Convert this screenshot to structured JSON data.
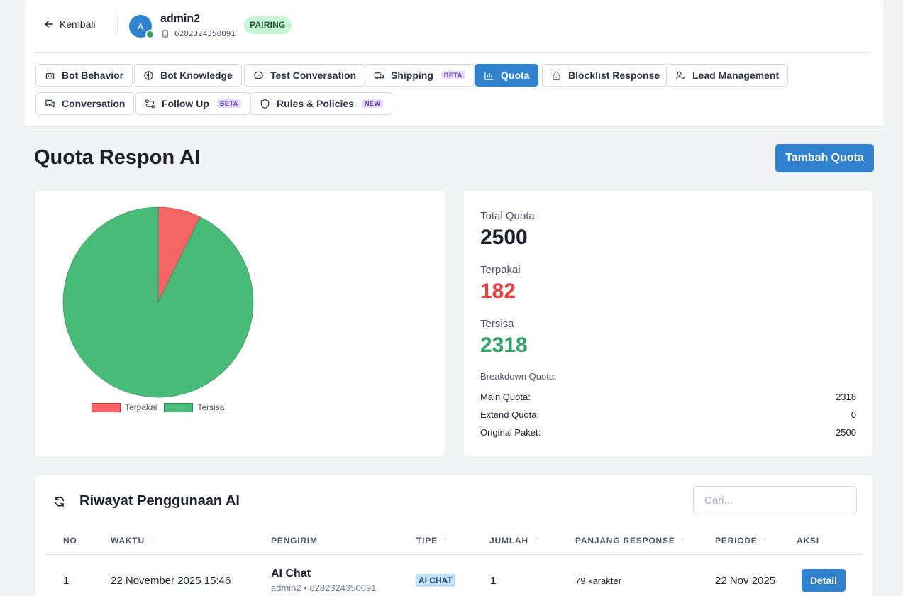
{
  "header": {
    "back_label": "Kembali",
    "avatar_initial": "A",
    "user_name": "admin2",
    "user_phone": "6282324350091",
    "status_badge": "PAIRING"
  },
  "tabs": [
    {
      "label": "Bot Behavior",
      "icon": "bot-icon",
      "tag": ""
    },
    {
      "label": "Bot Knowledge",
      "icon": "brain-icon",
      "tag": ""
    },
    {
      "label": "Test Conversation",
      "icon": "chat-bubble-icon",
      "tag": ""
    },
    {
      "label": "Shipping",
      "icon": "truck-icon",
      "tag": "BETA"
    },
    {
      "label": "Quota",
      "icon": "bar-chart-icon",
      "tag": "",
      "active": true
    },
    {
      "label": "Blocklist Response",
      "icon": "lock-icon",
      "tag": ""
    },
    {
      "label": "Lead Management",
      "icon": "user-check-icon",
      "tag": ""
    },
    {
      "label": "Conversation",
      "icon": "messages-icon",
      "tag": ""
    },
    {
      "label": "Follow Up",
      "icon": "route-icon",
      "tag": "BETA"
    },
    {
      "label": "Rules & Policies",
      "icon": "shield-icon",
      "tag": "NEW"
    }
  ],
  "page": {
    "title": "Quota Respon AI",
    "add_button": "Tambah Quota"
  },
  "chart_data": {
    "type": "pie",
    "categories": [
      "Terpakai",
      "Tersisa"
    ],
    "values": [
      182,
      2318
    ],
    "colors": [
      "#f56565",
      "#48bb78"
    ],
    "legend_position": "bottom"
  },
  "stats": {
    "total_label": "Total Quota",
    "total_value": "2500",
    "used_label": "Terpakai",
    "used_value": "182",
    "remaining_label": "Tersisa",
    "remaining_value": "2318",
    "used_color": "#e53e3e",
    "remaining_color": "#38a169",
    "breakdown_title": "Breakdown Quota:",
    "breakdown": [
      {
        "label": "Main Quota:",
        "value": "2318"
      },
      {
        "label": "Extend Quota:",
        "value": "0"
      },
      {
        "label": "Original Paket:",
        "value": "2500"
      }
    ]
  },
  "history": {
    "title": "Riwayat Penggunaan AI",
    "search_placeholder": "Cari...",
    "columns": [
      "NO",
      "WAKTU",
      "PENGIRIM",
      "TIPE",
      "JUMLAH",
      "PANJANG RESPONSE",
      "PERIODE",
      "AKSI"
    ],
    "rows": [
      {
        "no": "1",
        "waktu": "22 November 2025 15:46",
        "pengirim": "AI Chat",
        "pengirim_sub": "admin2 • 6282324350091",
        "tipe": "AI CHAT",
        "jumlah": "1",
        "panjang": "79 karakter",
        "periode": "22 Nov 2025",
        "aksi": "Detail"
      }
    ]
  }
}
